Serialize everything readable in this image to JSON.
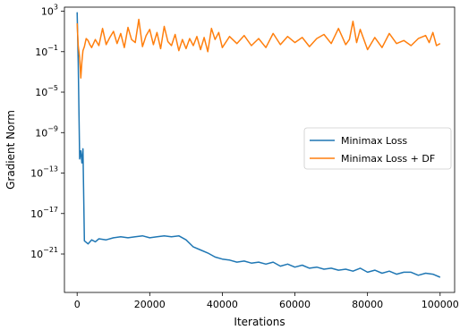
{
  "chart_data": {
    "type": "line",
    "xlabel": "Iterations",
    "ylabel": "Gradient Norm",
    "xlim": [
      -3500,
      104000
    ],
    "ylim_log10": [
      -24.8,
      3.4
    ],
    "yscale": "log",
    "x_ticks": [
      0,
      20000,
      40000,
      60000,
      80000,
      100000
    ],
    "x_tick_labels": [
      "0",
      "20000",
      "40000",
      "60000",
      "80000",
      "100000"
    ],
    "y_ticks_log10": [
      3,
      -1,
      -5,
      -9,
      -13,
      -17,
      -21
    ],
    "y_tick_mantissa": "10",
    "y_tick_exponents": [
      "3",
      "−1",
      "−5",
      "−9",
      "−13",
      "−17",
      "−21"
    ],
    "grid": false,
    "legend_position": "center-right",
    "series": [
      {
        "name": "Minimax Loss",
        "color": "#1f77b4",
        "x": [
          0,
          300,
          700,
          1000,
          1300,
          1600,
          2000,
          3000,
          4000,
          5000,
          6000,
          8000,
          10000,
          12000,
          14000,
          16000,
          18000,
          20000,
          22000,
          24000,
          26000,
          28000,
          30000,
          32000,
          34000,
          36000,
          38000,
          40000,
          42000,
          44000,
          46000,
          48000,
          50000,
          52000,
          54000,
          56000,
          58000,
          60000,
          62000,
          64000,
          66000,
          68000,
          70000,
          72000,
          74000,
          76000,
          78000,
          80000,
          82000,
          84000,
          86000,
          88000,
          90000,
          92000,
          94000,
          96000,
          98000,
          100000
        ],
        "y_log10": [
          2.9,
          -2.0,
          -11.6,
          -10.8,
          -12.0,
          -10.6,
          -19.7,
          -20.0,
          -19.6,
          -19.8,
          -19.5,
          -19.6,
          -19.4,
          -19.3,
          -19.4,
          -19.3,
          -19.2,
          -19.4,
          -19.3,
          -19.2,
          -19.3,
          -19.2,
          -19.6,
          -20.3,
          -20.6,
          -20.9,
          -21.3,
          -21.5,
          -21.6,
          -21.8,
          -21.7,
          -21.9,
          -21.8,
          -22.0,
          -21.8,
          -22.2,
          -22.0,
          -22.3,
          -22.1,
          -22.4,
          -22.3,
          -22.5,
          -22.4,
          -22.6,
          -22.5,
          -22.7,
          -22.4,
          -22.8,
          -22.6,
          -22.9,
          -22.7,
          -23.0,
          -22.8,
          -22.8,
          -23.1,
          -22.9,
          -23.0,
          -23.3
        ]
      },
      {
        "name": "Minimax Loss + DF",
        "color": "#ff7f0e",
        "x": [
          0,
          300,
          700,
          1000,
          1300,
          1600,
          2000,
          2500,
          3000,
          3500,
          4000,
          5000,
          6000,
          7000,
          8000,
          9000,
          10000,
          11000,
          12000,
          13000,
          14000,
          15000,
          16000,
          17000,
          18000,
          19000,
          20000,
          21000,
          22000,
          23000,
          24000,
          25000,
          26000,
          27000,
          28000,
          29000,
          30000,
          31000,
          32000,
          33000,
          34000,
          35000,
          36000,
          37000,
          38000,
          39000,
          40000,
          42000,
          44000,
          46000,
          48000,
          50000,
          52000,
          54000,
          56000,
          58000,
          60000,
          62000,
          64000,
          66000,
          68000,
          70000,
          72000,
          74000,
          75000,
          76000,
          77000,
          78000,
          80000,
          82000,
          84000,
          86000,
          88000,
          90000,
          92000,
          94000,
          96000,
          97000,
          98000,
          99000,
          100000
        ],
        "y_log10": [
          1.8,
          -0.4,
          -1.6,
          -3.6,
          -2.0,
          -0.9,
          -0.5,
          0.3,
          0.1,
          -0.3,
          -0.6,
          0.2,
          -0.4,
          1.3,
          -0.3,
          0.4,
          1.0,
          -0.2,
          0.8,
          -0.6,
          1.4,
          0.2,
          -0.1,
          2.2,
          -0.5,
          0.6,
          1.2,
          -0.3,
          0.9,
          -0.7,
          1.5,
          0.0,
          -0.4,
          0.7,
          -0.9,
          0.2,
          -0.7,
          0.3,
          -0.4,
          0.5,
          -0.8,
          0.4,
          -1.0,
          1.3,
          0.2,
          0.9,
          -0.6,
          0.5,
          -0.2,
          0.6,
          -0.4,
          0.3,
          -0.6,
          0.8,
          -0.3,
          0.5,
          -0.1,
          0.4,
          -0.5,
          0.3,
          0.7,
          -0.2,
          1.3,
          -0.3,
          0.2,
          2.0,
          -0.1,
          1.2,
          -0.8,
          0.4,
          -0.6,
          0.8,
          -0.2,
          0.1,
          -0.4,
          0.3,
          0.6,
          -0.1,
          0.9,
          -0.4,
          -0.2
        ]
      }
    ]
  }
}
